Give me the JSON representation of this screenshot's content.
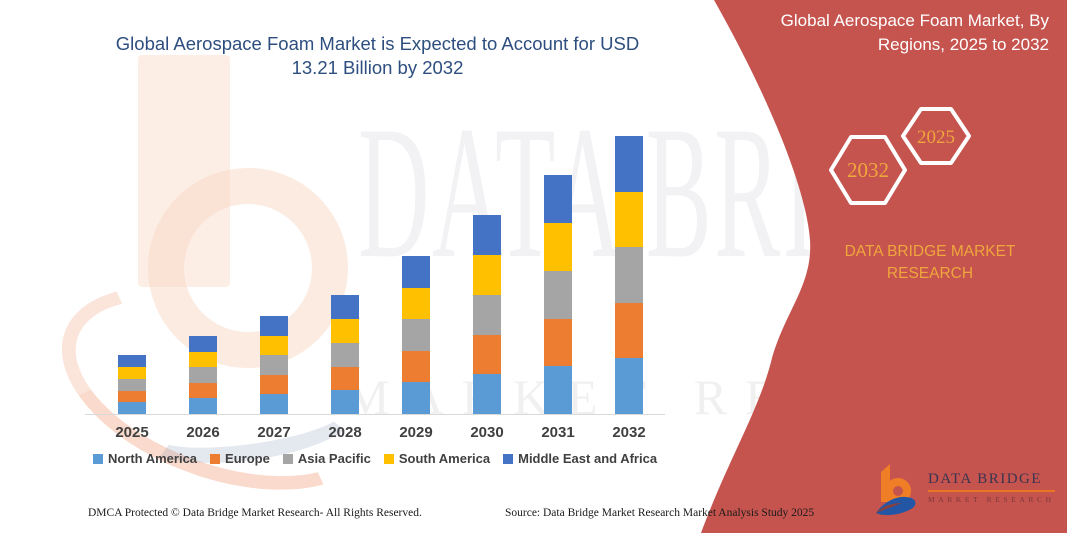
{
  "chart": {
    "title_line1": "Global Aerospace Foam Market is Expected to Account for USD",
    "title_line2": "13.21 Billion by 2032"
  },
  "chart_data": {
    "type": "bar",
    "stacked": true,
    "title": "Global Aerospace Foam Market is Expected to Account for USD 13.21 Billion by 2032",
    "unit": "USD Billion",
    "categories": [
      "2025",
      "2026",
      "2027",
      "2028",
      "2029",
      "2030",
      "2031",
      "2032"
    ],
    "series": [
      {
        "name": "North America",
        "color": "#5B9BD5",
        "values": [
          0.558,
          0.744,
          0.934,
          1.13,
          1.502,
          1.89,
          2.272,
          2.642
        ]
      },
      {
        "name": "Europe",
        "color": "#ED7D31",
        "values": [
          0.558,
          0.744,
          0.934,
          1.13,
          1.502,
          1.89,
          2.272,
          2.642
        ]
      },
      {
        "name": "Asia Pacific",
        "color": "#A5A5A5",
        "values": [
          0.558,
          0.744,
          0.934,
          1.13,
          1.502,
          1.89,
          2.272,
          2.642
        ]
      },
      {
        "name": "South America",
        "color": "#FFC000",
        "values": [
          0.558,
          0.744,
          0.934,
          1.13,
          1.502,
          1.89,
          2.272,
          2.642
        ]
      },
      {
        "name": "Middle East and Africa",
        "color": "#4472C4",
        "values": [
          0.558,
          0.744,
          0.934,
          1.13,
          1.502,
          1.89,
          2.272,
          2.642
        ]
      }
    ],
    "totals": [
      2.79,
      3.72,
      4.67,
      5.65,
      7.51,
      9.45,
      11.36,
      13.21
    ],
    "ylim": [
      0,
      13.8
    ],
    "grid": false,
    "y_axis_visible": false,
    "legend_position": "bottom"
  },
  "right_panel": {
    "title_line1": "Global Aerospace Foam Market, By",
    "title_line2": "Regions, 2025 to 2032",
    "hexagon_back_label": "2032",
    "hexagon_front_label": "2025",
    "brand_line1": "DATA BRIDGE MARKET",
    "brand_line2": "RESEARCH",
    "colors": {
      "panel_red": "#C5534E",
      "accent_gold": "#EFA63C"
    }
  },
  "logo": {
    "name": "DATA BRIDGE",
    "subtitle": "MARKET RESEARCH",
    "colors": {
      "orange": "#F07E26",
      "blue": "#2456A6"
    }
  },
  "watermark": {
    "text_large": "DATA BRIDGE",
    "text_small": "MARKET RESEARCH"
  },
  "footer": {
    "left": "DMCA Protected © Data Bridge Market Research-  All Rights Reserved.",
    "right": "Source: Data Bridge Market Research  Market Analysis Study 2025"
  }
}
